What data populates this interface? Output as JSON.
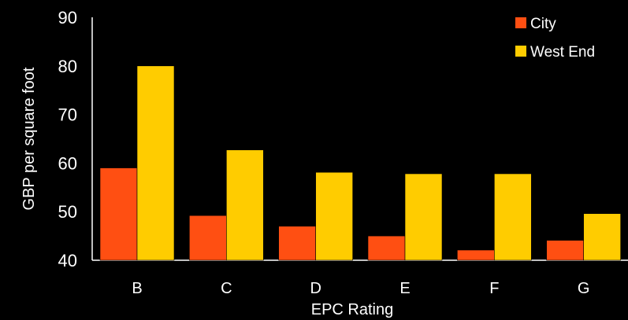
{
  "chart_data": {
    "type": "bar",
    "categories": [
      "B",
      "C",
      "D",
      "E",
      "F",
      "G"
    ],
    "series": [
      {
        "name": "City",
        "color": "#ff4f12",
        "values": [
          59,
          49.2,
          47,
          45,
          42.1,
          44.1
        ]
      },
      {
        "name": "West End",
        "color": "#ffcc00",
        "values": [
          80,
          62.7,
          58.1,
          57.8,
          57.8,
          49.6
        ]
      }
    ],
    "xlabel": "EPC Rating",
    "ylabel": "GBP per square foot",
    "ylim": [
      40,
      90
    ],
    "yticks": [
      40,
      50,
      60,
      70,
      80,
      90
    ],
    "grid": false,
    "legend_position": "top-right"
  }
}
